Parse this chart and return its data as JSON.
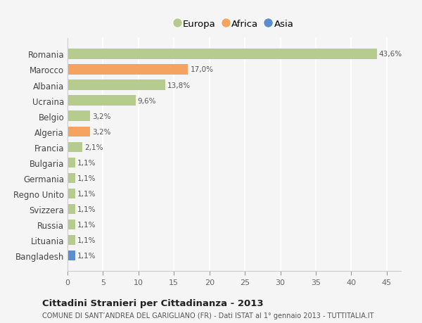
{
  "countries": [
    "Romania",
    "Marocco",
    "Albania",
    "Ucraina",
    "Belgio",
    "Algeria",
    "Francia",
    "Bulgaria",
    "Germania",
    "Regno Unito",
    "Svizzera",
    "Russia",
    "Lituania",
    "Bangladesh"
  ],
  "values": [
    43.6,
    17.0,
    13.8,
    9.6,
    3.2,
    3.2,
    2.1,
    1.1,
    1.1,
    1.1,
    1.1,
    1.1,
    1.1,
    1.1
  ],
  "labels": [
    "43,6%",
    "17,0%",
    "13,8%",
    "9,6%",
    "3,2%",
    "3,2%",
    "2,1%",
    "1,1%",
    "1,1%",
    "1,1%",
    "1,1%",
    "1,1%",
    "1,1%",
    "1,1%"
  ],
  "continents": [
    "Europa",
    "Africa",
    "Europa",
    "Europa",
    "Europa",
    "Africa",
    "Europa",
    "Europa",
    "Europa",
    "Europa",
    "Europa",
    "Europa",
    "Europa",
    "Asia"
  ],
  "colors": {
    "Europa": "#b5cc8e",
    "Africa": "#f4a460",
    "Asia": "#5b8ecf"
  },
  "legend_labels": [
    "Europa",
    "Africa",
    "Asia"
  ],
  "legend_colors": [
    "#b5cc8e",
    "#f4a460",
    "#5b8ecf"
  ],
  "title": "Cittadini Stranieri per Cittadinanza - 2013",
  "subtitle": "COMUNE DI SANT’ANDREA DEL GARIGLIANO (FR) - Dati ISTAT al 1° gennaio 2013 - TUTTITALIA.IT",
  "xlim": [
    0,
    47
  ],
  "xticks": [
    0,
    5,
    10,
    15,
    20,
    25,
    30,
    35,
    40,
    45
  ],
  "bg_color": "#f5f5f5",
  "grid_color": "#ffffff"
}
